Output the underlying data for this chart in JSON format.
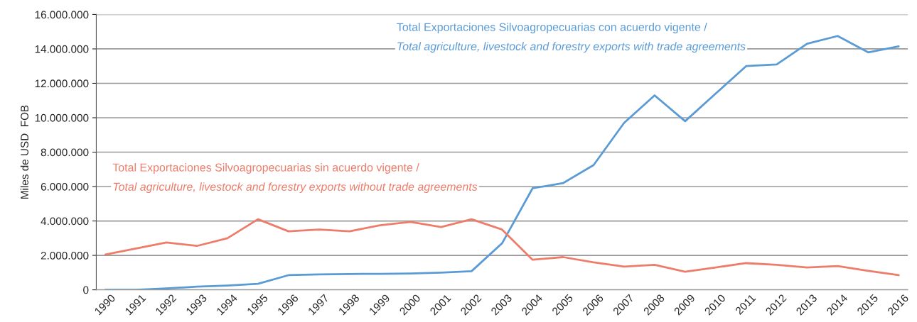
{
  "chart_data": {
    "type": "line",
    "ylabel": "Miles de USD  FOB",
    "categories": [
      "1990",
      "1991",
      "1992",
      "1993",
      "1994",
      "1995",
      "1996",
      "1997",
      "1998",
      "1999",
      "2000",
      "2001",
      "2002",
      "2003",
      "2004",
      "2005",
      "2006",
      "2007",
      "2008",
      "2009",
      "2010",
      "2011",
      "2012",
      "2013",
      "2014",
      "2015",
      "2016"
    ],
    "series": [
      {
        "name": "Total Exportaciones Silvoagropecuarias con acuerdo vigente /\nTotal agriculture, livestock and forestry exports with trade agreements",
        "color": "#5b9bd5",
        "values": [
          0,
          0,
          80000,
          180000,
          250000,
          350000,
          850000,
          900000,
          920000,
          930000,
          950000,
          1000000,
          1080000,
          2700000,
          5900000,
          6200000,
          7250000,
          9700000,
          11300000,
          9800000,
          11400000,
          13000000,
          13100000,
          14300000,
          14750000,
          13800000,
          14150000
        ]
      },
      {
        "name": "Total Exportaciones Silvoagropecuarias sin acuerdo vigente /\nTotal agriculture, livestock and forestry exports without trade agreements",
        "color": "#ed7d6a",
        "values": [
          2050000,
          2400000,
          2750000,
          2550000,
          3000000,
          4100000,
          3400000,
          3500000,
          3400000,
          3750000,
          3950000,
          3650000,
          4100000,
          3500000,
          1750000,
          1900000,
          1600000,
          1350000,
          1450000,
          1050000,
          1300000,
          1550000,
          1450000,
          1300000,
          1380000,
          1100000,
          850000
        ]
      }
    ],
    "ylim": [
      0,
      16000000
    ],
    "yticks": [
      {
        "value": 0,
        "label": "0"
      },
      {
        "value": 2000000,
        "label": "2.000.000"
      },
      {
        "value": 4000000,
        "label": "4.000.000"
      },
      {
        "value": 6000000,
        "label": "6.000.000"
      },
      {
        "value": 8000000,
        "label": "8.000.000"
      },
      {
        "value": 10000000,
        "label": "10.000.000"
      },
      {
        "value": 12000000,
        "label": "12.000.000"
      },
      {
        "value": 14000000,
        "label": "14.000.000"
      },
      {
        "value": 16000000,
        "label": "16.000.000"
      }
    ],
    "grid": "y",
    "legend": false
  }
}
